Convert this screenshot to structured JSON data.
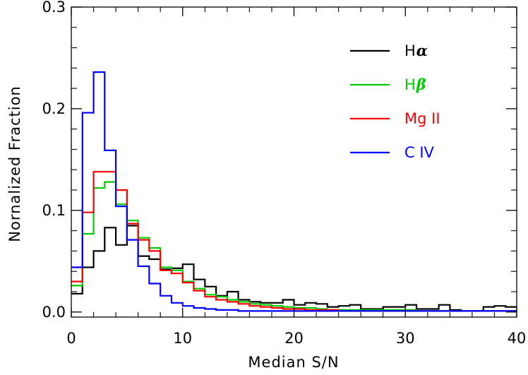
{
  "chart_data": {
    "type": "line",
    "title": "",
    "xlabel": "Median S/N",
    "ylabel": "Nornalized Fraction",
    "xlim": [
      0,
      40
    ],
    "ylim": [
      -0.005,
      0.3
    ],
    "xticks": [
      0,
      10,
      20,
      30,
      40
    ],
    "xtick_labels": [
      "0",
      "10",
      "20",
      "30",
      "40"
    ],
    "yticks": [
      0.0,
      0.1,
      0.2,
      0.3
    ],
    "ytick_labels": [
      "0.0",
      "0.1",
      "0.2",
      "0.3"
    ],
    "grid": false,
    "legend_position": "top-right",
    "bin_width": 1,
    "bin_starts": [
      0,
      1,
      2,
      3,
      4,
      5,
      6,
      7,
      8,
      9,
      10,
      11,
      12,
      13,
      14,
      15,
      16,
      17,
      18,
      19,
      20,
      21,
      22,
      23,
      24,
      25,
      26,
      27,
      28,
      29,
      30,
      31,
      32,
      33,
      34,
      35,
      36,
      37,
      38,
      39
    ],
    "series": [
      {
        "name": "Hα",
        "label_main": "H",
        "label_greek": "α",
        "color": "#000000",
        "values": [
          0.018,
          0.044,
          0.06,
          0.083,
          0.066,
          0.085,
          0.055,
          0.052,
          0.042,
          0.043,
          0.047,
          0.032,
          0.025,
          0.016,
          0.02,
          0.012,
          0.01,
          0.009,
          0.009,
          0.012,
          0.007,
          0.009,
          0.008,
          0.005,
          0.006,
          0.007,
          0.003,
          0.003,
          0.005,
          0.005,
          0.007,
          0.003,
          0.003,
          0.007,
          0.002,
          0.001,
          0.001,
          0.005,
          0.006,
          0.005
        ]
      },
      {
        "name": "Hβ",
        "label_main": "H",
        "label_greek": "β",
        "color": "#00cc00",
        "values": [
          0.026,
          0.077,
          0.122,
          0.128,
          0.106,
          0.09,
          0.073,
          0.063,
          0.044,
          0.041,
          0.03,
          0.023,
          0.017,
          0.015,
          0.012,
          0.01,
          0.008,
          0.007,
          0.006,
          0.005,
          0.004,
          0.004,
          0.003,
          0.002,
          0.002,
          0.002,
          0.002,
          0.002,
          0.002,
          0.002,
          0.002,
          0.001,
          0.001,
          0.001,
          0.001,
          0.001,
          0.001,
          0.001,
          0.001,
          0.001
        ]
      },
      {
        "name": "Mg II",
        "color": "#ff0000",
        "values": [
          0.03,
          0.098,
          0.138,
          0.138,
          0.12,
          0.087,
          0.071,
          0.06,
          0.041,
          0.038,
          0.029,
          0.021,
          0.015,
          0.012,
          0.01,
          0.008,
          0.006,
          0.005,
          0.004,
          0.003,
          0.003,
          0.002,
          0.002,
          0.002,
          0.001,
          0.001,
          0.001,
          0.001,
          0.001,
          0.001,
          0.001,
          0.001,
          0.001,
          0.001,
          0.001,
          0.001,
          0.001,
          0.001,
          0.001,
          0.001
        ]
      },
      {
        "name": "C IV",
        "color": "#0000ff",
        "values": [
          0.044,
          0.196,
          0.236,
          0.159,
          0.104,
          0.071,
          0.045,
          0.028,
          0.016,
          0.009,
          0.006,
          0.004,
          0.003,
          0.002,
          0.002,
          0.001,
          0.001,
          0.001,
          0.001,
          0.001,
          0.001,
          0.001,
          0.001,
          0.001,
          0.001,
          0.001,
          0.001,
          0.001,
          0.001,
          0.001,
          0.001,
          0.001,
          0.001,
          0.001,
          0.001,
          0.001,
          0.001,
          0.001,
          0.001,
          0.001
        ]
      }
    ]
  }
}
